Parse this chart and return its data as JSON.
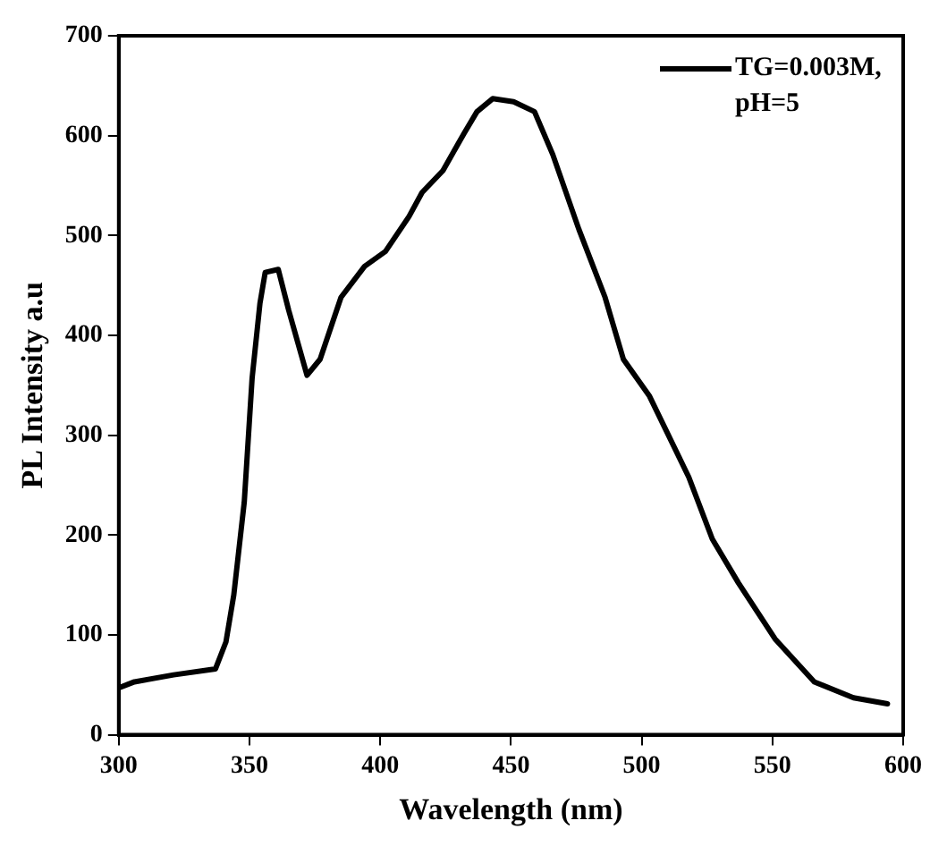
{
  "chart_data": {
    "type": "line",
    "xlabel": "Wavelength (nm)",
    "ylabel": "PL Intensity a.u",
    "xlim": [
      300,
      600
    ],
    "xticks": [
      300,
      350,
      400,
      450,
      500,
      550,
      600
    ],
    "ylim": [
      0,
      700
    ],
    "yticks": [
      0,
      100,
      200,
      300,
      400,
      500,
      600,
      700
    ],
    "grid": false,
    "legend": "top right",
    "marker": "none",
    "line_style": "solid",
    "series": [
      {
        "name": "TG=0.003M, pH=5",
        "color": "#000000",
        "x": [
          300,
          306,
          321,
          337,
          341,
          344,
          348,
          351,
          354,
          356,
          361,
          365,
          372,
          377,
          385,
          394,
          402,
          411,
          416,
          424,
          432,
          437,
          443,
          451,
          459,
          466,
          476,
          486,
          493,
          503,
          518,
          527,
          537,
          551,
          566,
          581,
          594
        ],
        "values": [
          47,
          53,
          60,
          66,
          93,
          140,
          233,
          357,
          432,
          463,
          466,
          425,
          360,
          376,
          438,
          469,
          484,
          519,
          543,
          565,
          602,
          624,
          637,
          634,
          624,
          581,
          506,
          438,
          376,
          339,
          258,
          196,
          152,
          96,
          53,
          37,
          31
        ]
      }
    ]
  }
}
